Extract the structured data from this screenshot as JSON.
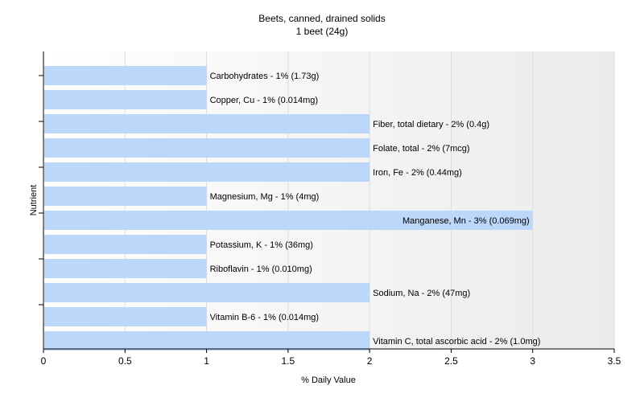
{
  "chart_data": {
    "type": "bar",
    "orientation": "horizontal",
    "title": "Beets, canned, drained solids",
    "subtitle": "1 beet (24g)",
    "xlabel": "% Daily Value",
    "ylabel": "Nutrient",
    "xlim": [
      0,
      3.5
    ],
    "xticks": [
      "0",
      "0.5",
      "1",
      "1.5",
      "2",
      "2.5",
      "3",
      "3.5"
    ],
    "grid": true,
    "bar_color": "#bdd7fa",
    "categories": [
      "Carbohydrates",
      "Copper, Cu",
      "Fiber, total dietary",
      "Folate, total",
      "Iron, Fe",
      "Magnesium, Mg",
      "Manganese, Mn",
      "Potassium, K",
      "Riboflavin",
      "Sodium, Na",
      "Vitamin B-6",
      "Vitamin C, total ascorbic acid"
    ],
    "values": [
      1,
      1,
      2,
      2,
      2,
      1,
      3,
      1,
      1,
      2,
      1,
      2
    ],
    "labels": [
      "Carbohydrates - 1% (1.73g)",
      "Copper, Cu - 1% (0.014mg)",
      "Fiber, total dietary - 2% (0.4g)",
      "Folate, total - 2% (7mcg)",
      "Iron, Fe - 2% (0.44mg)",
      "Magnesium, Mg - 1% (4mg)",
      "Manganese, Mn - 3% (0.069mg)",
      "Potassium, K - 1% (36mg)",
      "Riboflavin - 1% (0.010mg)",
      "Sodium, Na - 2% (47mg)",
      "Vitamin B-6 - 1% (0.014mg)",
      "Vitamin C, total ascorbic acid - 2% (1.0mg)"
    ]
  }
}
